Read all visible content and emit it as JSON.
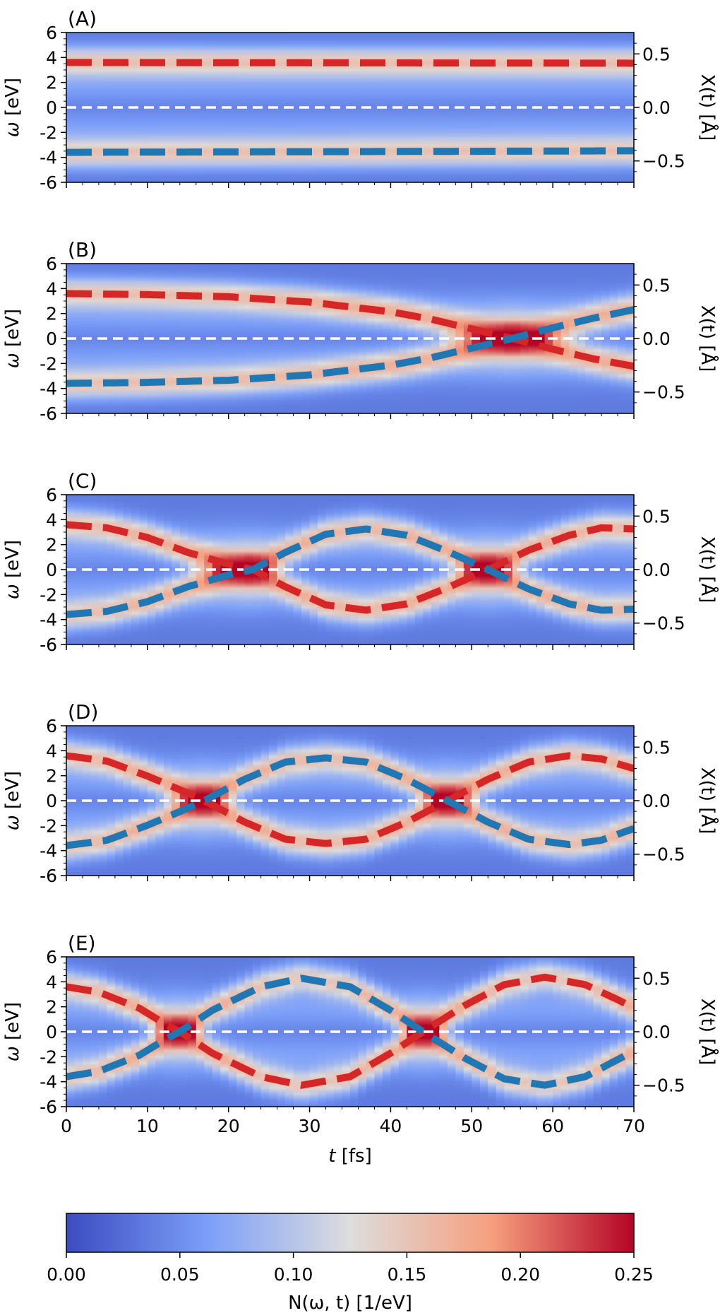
{
  "chart_data": {
    "type": "heatmap",
    "x": {
      "label_var": "t",
      "label_unit": "[fs]",
      "range": [
        0,
        70
      ],
      "ticks": [
        0,
        10,
        20,
        30,
        40,
        50,
        60,
        70
      ]
    },
    "y_left": {
      "label_var": "ω",
      "label_unit": "[eV]",
      "range": [
        -6,
        6
      ],
      "ticks": [
        6,
        4,
        2,
        0,
        -2,
        -4,
        -6
      ],
      "tick_labels": [
        "6",
        "4",
        "2",
        "0",
        "-2",
        "-4",
        "-6"
      ]
    },
    "y_right": {
      "label": "X(t) [Å]",
      "range": [
        -0.7,
        0.7
      ],
      "ticks": [
        0.5,
        0.0,
        -0.5
      ],
      "tick_labels": [
        "0.5",
        "0.0",
        "−0.5"
      ]
    },
    "colorbar": {
      "label": "N(ω, t) [1/eV]",
      "range": [
        0.0,
        0.25
      ],
      "ticks": [
        0.0,
        0.05,
        0.1,
        0.15,
        0.2,
        0.25
      ],
      "tick_labels": [
        "0.00",
        "0.05",
        "0.10",
        "0.15",
        "0.20",
        "0.25"
      ],
      "colormap": "coolwarm"
    },
    "series_colors": {
      "upper": "#d62728",
      "lower": "#1f77b4",
      "zero": "#ffffff"
    },
    "panels": [
      {
        "label": "(A)",
        "upper_x": [
          [
            0,
            0.42
          ],
          [
            10,
            0.419
          ],
          [
            20,
            0.418
          ],
          [
            30,
            0.417
          ],
          [
            40,
            0.416
          ],
          [
            50,
            0.415
          ],
          [
            60,
            0.414
          ],
          [
            70,
            0.413
          ]
        ],
        "lower_x": [
          [
            0,
            -0.42
          ],
          [
            10,
            -0.418
          ],
          [
            20,
            -0.416
          ],
          [
            30,
            -0.414
          ],
          [
            40,
            -0.412
          ],
          [
            50,
            -0.41
          ],
          [
            60,
            -0.408
          ],
          [
            70,
            -0.405
          ]
        ]
      },
      {
        "label": "(B)",
        "upper_x": [
          [
            0,
            0.42
          ],
          [
            10,
            0.41
          ],
          [
            20,
            0.39
          ],
          [
            30,
            0.34
          ],
          [
            40,
            0.25
          ],
          [
            45,
            0.18
          ],
          [
            50,
            0.09
          ],
          [
            55,
            0.0
          ],
          [
            60,
            -0.1
          ],
          [
            65,
            -0.19
          ],
          [
            70,
            -0.26
          ]
        ],
        "lower_x": [
          [
            0,
            -0.42
          ],
          [
            10,
            -0.41
          ],
          [
            20,
            -0.39
          ],
          [
            30,
            -0.34
          ],
          [
            40,
            -0.25
          ],
          [
            45,
            -0.18
          ],
          [
            50,
            -0.09
          ],
          [
            55,
            0.0
          ],
          [
            60,
            0.1
          ],
          [
            65,
            0.19
          ],
          [
            70,
            0.27
          ]
        ]
      },
      {
        "label": "(C)",
        "upper_x": [
          [
            0,
            0.42
          ],
          [
            5,
            0.39
          ],
          [
            10,
            0.3
          ],
          [
            15,
            0.16
          ],
          [
            20,
            0.05
          ],
          [
            23,
            0.0
          ],
          [
            27,
            -0.16
          ],
          [
            32,
            -0.33
          ],
          [
            37,
            -0.38
          ],
          [
            42,
            -0.32
          ],
          [
            47,
            -0.17
          ],
          [
            52,
            0.0
          ],
          [
            57,
            0.18
          ],
          [
            62,
            0.32
          ],
          [
            66,
            0.39
          ],
          [
            70,
            0.38
          ]
        ],
        "lower_x": [
          [
            0,
            -0.42
          ],
          [
            5,
            -0.39
          ],
          [
            10,
            -0.3
          ],
          [
            15,
            -0.16
          ],
          [
            20,
            -0.05
          ],
          [
            23,
            0.0
          ],
          [
            27,
            0.16
          ],
          [
            32,
            0.33
          ],
          [
            37,
            0.38
          ],
          [
            42,
            0.32
          ],
          [
            47,
            0.17
          ],
          [
            52,
            0.0
          ],
          [
            57,
            -0.18
          ],
          [
            62,
            -0.32
          ],
          [
            66,
            -0.38
          ],
          [
            70,
            -0.37
          ]
        ]
      },
      {
        "label": "(D)",
        "upper_x": [
          [
            0,
            0.42
          ],
          [
            5,
            0.37
          ],
          [
            10,
            0.23
          ],
          [
            15,
            0.07
          ],
          [
            17,
            0.0
          ],
          [
            22,
            -0.2
          ],
          [
            27,
            -0.36
          ],
          [
            32,
            -0.4
          ],
          [
            37,
            -0.36
          ],
          [
            42,
            -0.2
          ],
          [
            47,
            0.0
          ],
          [
            52,
            0.2
          ],
          [
            57,
            0.36
          ],
          [
            62,
            0.42
          ],
          [
            66,
            0.39
          ],
          [
            70,
            0.3
          ]
        ],
        "lower_x": [
          [
            0,
            -0.42
          ],
          [
            5,
            -0.37
          ],
          [
            10,
            -0.23
          ],
          [
            15,
            -0.07
          ],
          [
            17,
            0.0
          ],
          [
            22,
            0.2
          ],
          [
            27,
            0.36
          ],
          [
            32,
            0.4
          ],
          [
            37,
            0.36
          ],
          [
            42,
            0.2
          ],
          [
            47,
            0.0
          ],
          [
            52,
            -0.2
          ],
          [
            57,
            -0.36
          ],
          [
            62,
            -0.41
          ],
          [
            66,
            -0.37
          ],
          [
            70,
            -0.26
          ]
        ]
      },
      {
        "label": "(E)",
        "upper_x": [
          [
            0,
            0.42
          ],
          [
            4,
            0.37
          ],
          [
            9,
            0.22
          ],
          [
            12,
            0.08
          ],
          [
            14,
            0.0
          ],
          [
            18,
            -0.2
          ],
          [
            24,
            -0.42
          ],
          [
            29,
            -0.5
          ],
          [
            35,
            -0.42
          ],
          [
            40,
            -0.2
          ],
          [
            44,
            0.0
          ],
          [
            49,
            0.24
          ],
          [
            54,
            0.44
          ],
          [
            59,
            0.51
          ],
          [
            64,
            0.44
          ],
          [
            68,
            0.3
          ],
          [
            70,
            0.22
          ]
        ],
        "lower_x": [
          [
            0,
            -0.42
          ],
          [
            4,
            -0.37
          ],
          [
            9,
            -0.22
          ],
          [
            12,
            -0.08
          ],
          [
            14,
            0.0
          ],
          [
            18,
            0.2
          ],
          [
            24,
            0.42
          ],
          [
            29,
            0.5
          ],
          [
            35,
            0.42
          ],
          [
            40,
            0.2
          ],
          [
            44,
            0.0
          ],
          [
            49,
            -0.24
          ],
          [
            54,
            -0.44
          ],
          [
            59,
            -0.5
          ],
          [
            64,
            -0.42
          ],
          [
            68,
            -0.26
          ],
          [
            70,
            -0.18
          ]
        ]
      }
    ]
  }
}
